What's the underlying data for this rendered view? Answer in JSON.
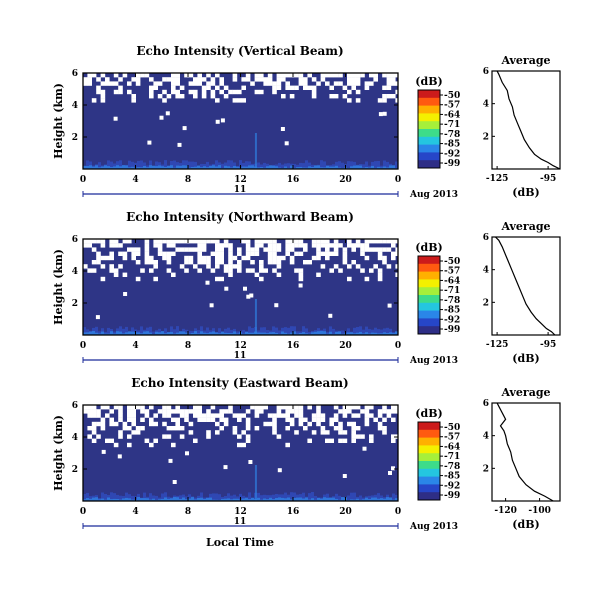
{
  "chart_data": [
    {
      "type": "heatmap",
      "title": "Echo Intensity (Vertical Beam)",
      "ylabel": "Height (km)",
      "xlabel": "",
      "x_ticks": [
        "0",
        "4",
        "8",
        "12",
        "16",
        "20",
        "0"
      ],
      "y_ticks": [
        "2",
        "4",
        "6"
      ],
      "xlim": [
        0,
        24
      ],
      "ylim": [
        0,
        6
      ],
      "date_day": "11",
      "date_label": "Aug 2013",
      "colorbar": {
        "label": "(dB)",
        "ticks": [
          "-50",
          "-57",
          "-64",
          "-71",
          "-78",
          "-85",
          "-92",
          "-99"
        ],
        "range": [
          -99,
          -50
        ]
      },
      "missing_from_km": 4.2,
      "average_profile": {
        "title": "Average",
        "xlabel": "(dB)",
        "x_ticks": [
          "-125",
          "-95"
        ],
        "y_ticks": [
          "2",
          "4",
          "6"
        ],
        "xlim": [
          -128,
          -88
        ],
        "ylim": [
          0,
          6
        ],
        "height_km": [
          0.0,
          0.2,
          0.4,
          0.6,
          0.9,
          1.3,
          1.8,
          2.3,
          2.8,
          3.3,
          3.8,
          4.3,
          4.8,
          5.3,
          5.8,
          6.0
        ],
        "db": [
          -88,
          -92,
          -95,
          -99,
          -103,
          -106,
          -109,
          -111,
          -113,
          -115,
          -116,
          -118,
          -119,
          -122,
          -124,
          -125
        ]
      }
    },
    {
      "type": "heatmap",
      "title": "Echo Intensity (Northward Beam)",
      "ylabel": "Height (km)",
      "xlabel": "",
      "x_ticks": [
        "0",
        "4",
        "8",
        "12",
        "16",
        "20",
        "0"
      ],
      "y_ticks": [
        "2",
        "4",
        "6"
      ],
      "xlim": [
        0,
        24
      ],
      "ylim": [
        0,
        6
      ],
      "date_day": "11",
      "date_label": "Aug 2013",
      "colorbar": {
        "label": "(dB)",
        "ticks": [
          "-50",
          "-57",
          "-64",
          "-71",
          "-78",
          "-85",
          "-92",
          "-99"
        ],
        "range": [
          -99,
          -50
        ]
      },
      "missing_from_km": 3.4,
      "average_profile": {
        "title": "Average",
        "xlabel": "(dB)",
        "x_ticks": [
          "-125",
          "-95"
        ],
        "y_ticks": [
          "2",
          "4",
          "6"
        ],
        "xlim": [
          -128,
          -88
        ],
        "ylim": [
          0,
          6
        ],
        "height_km": [
          0.0,
          0.2,
          0.4,
          0.7,
          1.0,
          1.4,
          1.9,
          2.4,
          2.9,
          3.4,
          3.9,
          4.4,
          4.9,
          5.4,
          5.8,
          6.0
        ],
        "db": [
          -91,
          -93,
          -96,
          -99,
          -102,
          -105,
          -108,
          -110,
          -112,
          -114,
          -116,
          -118,
          -120,
          -122,
          -124,
          -126
        ]
      }
    },
    {
      "type": "heatmap",
      "title": "Echo Intensity (Eastward Beam)",
      "ylabel": "Height (km)",
      "xlabel": "Local Time",
      "x_ticks": [
        "0",
        "4",
        "8",
        "12",
        "16",
        "20",
        "0"
      ],
      "y_ticks": [
        "2",
        "4",
        "6"
      ],
      "xlim": [
        0,
        24
      ],
      "ylim": [
        0,
        6
      ],
      "date_day": "11",
      "date_label": "Aug 2013",
      "colorbar": {
        "label": "(dB)",
        "ticks": [
          "-50",
          "-57",
          "-64",
          "-71",
          "-78",
          "-85",
          "-92",
          "-99"
        ],
        "range": [
          -99,
          -50
        ]
      },
      "missing_from_km": 3.6,
      "average_profile": {
        "title": "Average",
        "xlabel": "(dB)",
        "x_ticks": [
          "-120",
          "-100"
        ],
        "y_ticks": [
          "2",
          "4",
          "6"
        ],
        "xlim": [
          -128,
          -88
        ],
        "ylim": [
          0,
          6
        ],
        "height_km": [
          0.0,
          0.3,
          0.6,
          1.0,
          1.5,
          2.0,
          2.5,
          3.0,
          3.5,
          4.0,
          4.3,
          4.6,
          5.0,
          5.4,
          5.8,
          6.0
        ],
        "db": [
          -92,
          -97,
          -103,
          -108,
          -112,
          -114,
          -116,
          -117,
          -119,
          -120,
          -121,
          -123,
          -120,
          -122,
          -124,
          -125
        ]
      }
    }
  ]
}
